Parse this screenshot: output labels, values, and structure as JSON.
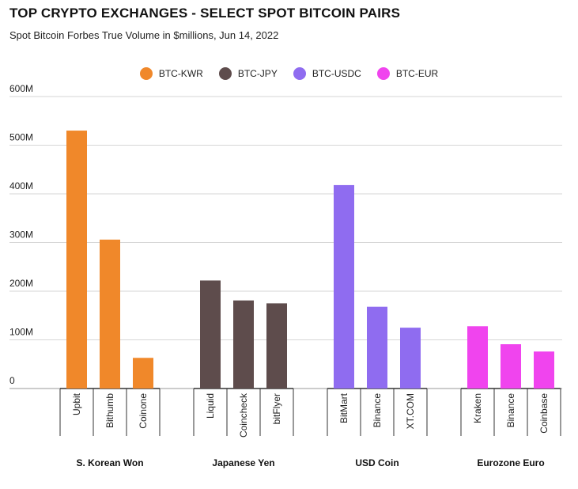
{
  "chart_data": {
    "type": "bar",
    "title": "TOP CRYPTO EXCHANGES - SELECT SPOT BITCOIN PAIRS",
    "subtitle": "Spot Bitcoin Forbes True Volume in $millions, Jun 14, 2022",
    "ylim": [
      0,
      600
    ],
    "yticks": [
      {
        "value": 0,
        "label": "0"
      },
      {
        "value": 100,
        "label": "100M"
      },
      {
        "value": 200,
        "label": "200M"
      },
      {
        "value": 300,
        "label": "300M"
      },
      {
        "value": 400,
        "label": "400M"
      },
      {
        "value": 500,
        "label": "500M"
      },
      {
        "value": 600,
        "label": "600M"
      }
    ],
    "grid": true,
    "legend_position": "top-center",
    "series": [
      {
        "name": "BTC-KWR",
        "color": "#f0882a"
      },
      {
        "name": "BTC-JPY",
        "color": "#5e4c4c"
      },
      {
        "name": "BTC-USDC",
        "color": "#8f6cf0"
      },
      {
        "name": "BTC-EUR",
        "color": "#f044ee"
      }
    ],
    "groups": [
      {
        "name": "S. Korean Won",
        "series": 0,
        "bars": [
          {
            "label": "Upbit",
            "value": 530
          },
          {
            "label": "Bithumb",
            "value": 306
          },
          {
            "label": "Coinone",
            "value": 63
          }
        ]
      },
      {
        "name": "Japanese Yen",
        "series": 1,
        "bars": [
          {
            "label": "Liquid",
            "value": 222
          },
          {
            "label": "Coincheck",
            "value": 181
          },
          {
            "label": "bitFlyer",
            "value": 175
          }
        ]
      },
      {
        "name": "USD Coin",
        "series": 2,
        "bars": [
          {
            "label": "BitMart",
            "value": 418
          },
          {
            "label": "Binance",
            "value": 168
          },
          {
            "label": "XT.COM",
            "value": 125
          }
        ]
      },
      {
        "name": "Eurozone Euro",
        "series": 3,
        "bars": [
          {
            "label": "Kraken",
            "value": 128
          },
          {
            "label": "Binance",
            "value": 91
          },
          {
            "label": "Coinbase",
            "value": 76
          }
        ]
      }
    ]
  }
}
